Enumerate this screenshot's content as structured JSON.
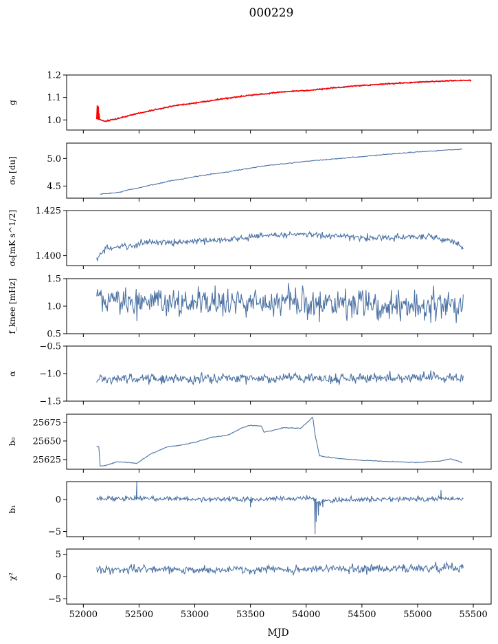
{
  "figure": {
    "title": "000229",
    "xlabel": "MJD"
  },
  "colors": {
    "series": "#4c72a4",
    "fit": "#ff0000",
    "axis": "#000000"
  },
  "chart_data": {
    "type": "line",
    "title": "000229",
    "xlabel": "MJD",
    "x_range": [
      52120,
      55410
    ],
    "xlim": [
      51850,
      55660
    ],
    "xticks": [
      52000,
      52500,
      53000,
      53500,
      54000,
      54500,
      55000,
      55500
    ],
    "xtick_labels": [
      "52000",
      "52500",
      "53000",
      "53500",
      "54000",
      "54500",
      "55000",
      "55500"
    ],
    "panels": [
      {
        "key": "g",
        "ylabel": "g",
        "ylim": [
          0.955,
          1.2
        ],
        "yticks": [
          1.0,
          1.1,
          1.2
        ],
        "ytick_labels": [
          "1.0",
          "1.1",
          "1.2"
        ],
        "series": [
          {
            "name": "",
            "color": "#4c72a4",
            "noise": 0.002,
            "points": [
              [
                52120,
                1.005
              ],
              [
                52150,
                1.0
              ],
              [
                52200,
                0.995
              ],
              [
                52300,
                1.005
              ],
              [
                52500,
                1.03
              ],
              [
                52800,
                1.062
              ],
              [
                53000,
                1.075
              ],
              [
                53200,
                1.09
              ],
              [
                53500,
                1.11
              ],
              [
                53800,
                1.125
              ],
              [
                54100,
                1.135
              ],
              [
                54400,
                1.15
              ],
              [
                54700,
                1.16
              ],
              [
                55000,
                1.168
              ],
              [
                55300,
                1.175
              ],
              [
                55480,
                1.176
              ]
            ]
          },
          {
            "name": "",
            "color": "#ff0000",
            "noise": 0.002,
            "points": [
              [
                52120,
                1.005
              ],
              [
                52150,
                1.0
              ],
              [
                52200,
                0.995
              ],
              [
                52300,
                1.005
              ],
              [
                52500,
                1.03
              ],
              [
                52800,
                1.062
              ],
              [
                53000,
                1.075
              ],
              [
                53200,
                1.09
              ],
              [
                53500,
                1.11
              ],
              [
                53800,
                1.125
              ],
              [
                54100,
                1.135
              ],
              [
                54400,
                1.15
              ],
              [
                54700,
                1.16
              ],
              [
                55000,
                1.168
              ],
              [
                55300,
                1.175
              ],
              [
                55480,
                1.176
              ]
            ],
            "spikes": [
              [
                52125,
                1.065
              ],
              [
                52130,
                1.045
              ],
              [
                52135,
                1.06
              ],
              [
                52140,
                1.03
              ]
            ]
          }
        ]
      },
      {
        "key": "sigma0_du",
        "ylabel": "σ₀ [du]",
        "ylim": [
          4.28,
          5.28
        ],
        "yticks": [
          4.5,
          5.0
        ],
        "ytick_labels": [
          "4.5",
          "5.0"
        ],
        "series": [
          {
            "name": "",
            "color": "#4c72a4",
            "noise": 0.006,
            "points": [
              [
                52150,
                4.35
              ],
              [
                52300,
                4.38
              ],
              [
                52500,
                4.47
              ],
              [
                52800,
                4.6
              ],
              [
                53000,
                4.67
              ],
              [
                53300,
                4.76
              ],
              [
                53600,
                4.86
              ],
              [
                54000,
                4.95
              ],
              [
                54300,
                5.0
              ],
              [
                54700,
                5.07
              ],
              [
                55000,
                5.12
              ],
              [
                55400,
                5.17
              ]
            ]
          }
        ]
      },
      {
        "key": "sigma0_mks",
        "ylabel": "σ₀[mK s^1/2]",
        "ylim": [
          1.3945,
          1.425
        ],
        "yticks": [
          1.4,
          1.425
        ],
        "ytick_labels": [
          "1.400",
          "1.425"
        ],
        "series": [
          {
            "name": "",
            "color": "#4c72a4",
            "noise": 0.0013,
            "points": [
              [
                52120,
                1.398
              ],
              [
                52200,
                1.404
              ],
              [
                52400,
                1.405
              ],
              [
                52600,
                1.408
              ],
              [
                52800,
                1.407
              ],
              [
                53000,
                1.408
              ],
              [
                53300,
                1.409
              ],
              [
                53600,
                1.411
              ],
              [
                53900,
                1.412
              ],
              [
                54200,
                1.411
              ],
              [
                54500,
                1.41
              ],
              [
                54800,
                1.41
              ],
              [
                55100,
                1.411
              ],
              [
                55350,
                1.407
              ],
              [
                55410,
                1.403
              ]
            ]
          }
        ]
      },
      {
        "key": "fknee",
        "ylabel": "f_knee [mHz]",
        "ylim": [
          0.5,
          1.5
        ],
        "yticks": [
          0.5,
          1.0,
          1.5
        ],
        "ytick_labels": [
          "0.5",
          "1.0",
          "1.5"
        ],
        "series": [
          {
            "name": "",
            "color": "#4c72a4",
            "noise": 0.19,
            "clip": true,
            "points": [
              [
                52120,
                1.1
              ],
              [
                52500,
                1.1
              ],
              [
                53000,
                1.05
              ],
              [
                53500,
                1.05
              ],
              [
                54000,
                1.05
              ],
              [
                54500,
                1.05
              ],
              [
                55000,
                1.0
              ],
              [
                55410,
                1.0
              ]
            ]
          }
        ]
      },
      {
        "key": "alpha",
        "ylabel": "α",
        "ylim": [
          -1.5,
          -0.5
        ],
        "yticks": [
          -1.5,
          -1.0,
          -0.5
        ],
        "ytick_labels": [
          "−1.5",
          "−1.0",
          "−0.5"
        ],
        "series": [
          {
            "name": "",
            "color": "#4c72a4",
            "noise": 0.065,
            "points": [
              [
                52120,
                -1.1
              ],
              [
                52500,
                -1.09
              ],
              [
                53000,
                -1.09
              ],
              [
                53500,
                -1.08
              ],
              [
                54000,
                -1.08
              ],
              [
                54500,
                -1.08
              ],
              [
                55000,
                -1.06
              ],
              [
                55410,
                -1.07
              ]
            ]
          }
        ]
      },
      {
        "key": "b0",
        "ylabel": "b₀",
        "ylim": [
          25612,
          25686
        ],
        "yticks": [
          25625,
          25650,
          25675
        ],
        "ytick_labels": [
          "25625",
          "25650",
          "25675"
        ],
        "series": [
          {
            "name": "",
            "color": "#4c72a4",
            "noise": 0.35,
            "points": [
              [
                52120,
                25643
              ],
              [
                52140,
                25642
              ],
              [
                52150,
                25616
              ],
              [
                52200,
                25617
              ],
              [
                52300,
                25622
              ],
              [
                52400,
                25621
              ],
              [
                52480,
                25620
              ],
              [
                52500,
                25622
              ],
              [
                52600,
                25632
              ],
              [
                52750,
                25642
              ],
              [
                52900,
                25645
              ],
              [
                53000,
                25648
              ],
              [
                53150,
                25655
              ],
              [
                53300,
                25658
              ],
              [
                53430,
                25668
              ],
              [
                53500,
                25671
              ],
              [
                53600,
                25670
              ],
              [
                53620,
                25662
              ],
              [
                53700,
                25664
              ],
              [
                53800,
                25668
              ],
              [
                53950,
                25667
              ],
              [
                54060,
                25682
              ],
              [
                54080,
                25658
              ],
              [
                54120,
                25630
              ],
              [
                54250,
                25627
              ],
              [
                54500,
                25624
              ],
              [
                54800,
                25622
              ],
              [
                55000,
                25621
              ],
              [
                55200,
                25623
              ],
              [
                55300,
                25626
              ],
              [
                55400,
                25621
              ]
            ]
          }
        ]
      },
      {
        "key": "b1",
        "ylabel": "b₁",
        "ylim": [
          -5.8,
          2.8
        ],
        "yticks": [
          -5,
          0
        ],
        "ytick_labels": [
          "−5",
          "0"
        ],
        "series": [
          {
            "name": "",
            "color": "#4c72a4",
            "noise": 0.28,
            "points": [
              [
                52120,
                0.1
              ],
              [
                52470,
                0.2
              ],
              [
                53000,
                0.1
              ],
              [
                53500,
                0.0
              ],
              [
                54000,
                0.2
              ],
              [
                54060,
                0.3
              ],
              [
                54100,
                -0.5
              ],
              [
                54300,
                0.0
              ],
              [
                55000,
                0.1
              ],
              [
                55410,
                0.0
              ]
            ],
            "spikes": [
              [
                52480,
                2.8
              ],
              [
                53500,
                -1.2
              ],
              [
                54080,
                -5.4
              ],
              [
                54090,
                -3.5
              ],
              [
                54110,
                -2.5
              ],
              [
                54150,
                -1.2
              ],
              [
                55210,
                1.5
              ]
            ]
          }
        ]
      },
      {
        "key": "chi2",
        "ylabel": "χ²",
        "ylim": [
          -6.2,
          6.2
        ],
        "yticks": [
          -5,
          0,
          5
        ],
        "ytick_labels": [
          "−5",
          "0",
          "5"
        ],
        "series": [
          {
            "name": "",
            "color": "#4c72a4",
            "noise": 0.7,
            "points": [
              [
                52120,
                1.5
              ],
              [
                52500,
                1.7
              ],
              [
                53000,
                1.6
              ],
              [
                53500,
                1.5
              ],
              [
                54000,
                1.7
              ],
              [
                54500,
                1.7
              ],
              [
                55000,
                1.9
              ],
              [
                55410,
                2.0
              ]
            ]
          }
        ]
      }
    ]
  }
}
